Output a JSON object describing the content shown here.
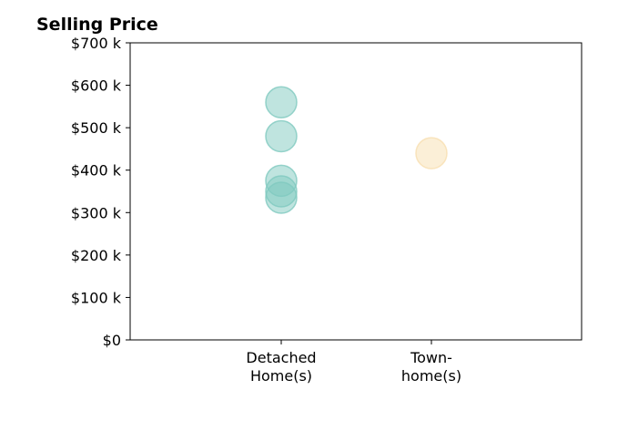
{
  "chart_data": {
    "type": "scatter",
    "title": "Selling Price",
    "xlabel": "",
    "ylabel": "",
    "categories": [
      [
        "Detached",
        "Home(s)"
      ],
      [
        "Town-",
        "home(s)"
      ]
    ],
    "ylim": [
      0,
      700
    ],
    "y_ticks": [
      0,
      100,
      200,
      300,
      400,
      500,
      600,
      700
    ],
    "y_tick_labels": [
      "$0",
      "$100 k",
      "$200 k",
      "$300 k",
      "$400 k",
      "$500 k",
      "$600 k",
      "$700 k"
    ],
    "series": [
      {
        "category": 0,
        "color": "#7fc9bf",
        "values": [
          560,
          480,
          375,
          350,
          335
        ]
      },
      {
        "category": 1,
        "color": "#f7dfb0",
        "values": [
          440
        ]
      }
    ],
    "grid": false,
    "marker_opacity": 0.5
  }
}
